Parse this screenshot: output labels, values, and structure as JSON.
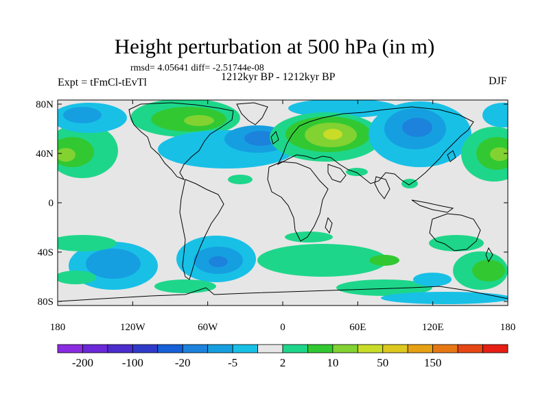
{
  "title": "Height perturbation at 500 hPa (in m)",
  "stats": "rmsd= 4.05641 diff= -2.51744e-08",
  "left_label": "Expt = tFmCl-tEvTl",
  "center_label": "1212kyr BP - 1212kyr BP",
  "right_label": "DJF",
  "lat_ticks": [
    "80N",
    "40N",
    "0",
    "40S",
    "80S"
  ],
  "lon_ticks": [
    "180",
    "120W",
    "60W",
    "0",
    "60E",
    "120E",
    "180"
  ],
  "colorbar": {
    "colors": [
      "#8a2be2",
      "#6a28d8",
      "#4b2ccc",
      "#2f3bc8",
      "#1660d8",
      "#1c82dc",
      "#169fe0",
      "#18c0e6",
      "#e6e6e6",
      "#1ed68a",
      "#32c832",
      "#82d232",
      "#c8dc28",
      "#dcc81e",
      "#e6a014",
      "#e67814",
      "#e64614",
      "#e61e14"
    ],
    "tick_labels": [
      "-200",
      "",
      "-100",
      "",
      "-20",
      "",
      "-5",
      "",
      "2",
      "",
      "10",
      "",
      "50",
      "",
      "150",
      "",
      ""
    ]
  }
}
